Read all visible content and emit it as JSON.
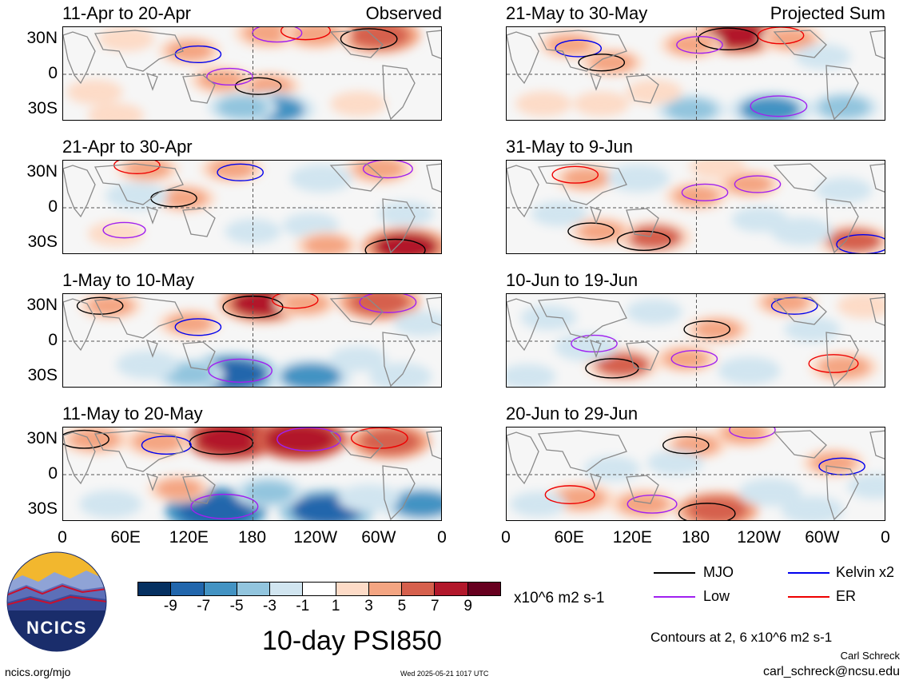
{
  "title": "10-day PSI850",
  "colors": {
    "ncics_navy": "#1a2d6b",
    "ncics_yellow": "#f2b72e",
    "mjo": "#000000",
    "low": "#a020f0",
    "kelvin": "#0000ee",
    "er": "#ee0000"
  },
  "chart_data": {
    "type": "heatmap",
    "variable": "10-day PSI850",
    "xaxis": {
      "ticks": [
        "0",
        "60E",
        "120E",
        "180",
        "120W",
        "60W",
        "0"
      ],
      "values": [
        0,
        60,
        120,
        180,
        240,
        300,
        360
      ]
    },
    "yaxis": {
      "ticks": [
        "30N",
        "0",
        "30S"
      ],
      "values": [
        30,
        0,
        -30
      ],
      "range": [
        -40,
        40
      ]
    },
    "colorbar": {
      "levels": [
        "-9",
        "-7",
        "-5",
        "-3",
        "-1",
        "1",
        "3",
        "5",
        "7",
        "9"
      ],
      "colors": [
        "#053061",
        "#2166ac",
        "#4393c3",
        "#92c5de",
        "#d1e5f0",
        "#ffffff",
        "#fddbc7",
        "#f4a582",
        "#d6604d",
        "#b2182b",
        "#67001f"
      ],
      "units": "x10^6 m2 s-1"
    },
    "legend": {
      "placement": "bottom-right",
      "items": [
        {
          "name": "MJO",
          "color": "#000000"
        },
        {
          "name": "Kelvin x2",
          "color": "#0000ee"
        },
        {
          "name": "Low",
          "color": "#a020f0"
        },
        {
          "name": "ER",
          "color": "#ee0000"
        }
      ]
    },
    "contour_note": "Contours at 2, 6 x10^6 m2 s-1",
    "panels": [
      {
        "period": "11-Apr to 20-Apr",
        "tag": "Observed",
        "features": [
          [
            300,
            33,
            6
          ],
          [
            195,
            35,
            4
          ],
          [
            240,
            34,
            4
          ],
          [
            120,
            20,
            3
          ],
          [
            195,
            -10,
            3
          ],
          [
            150,
            -5,
            3
          ],
          [
            30,
            -15,
            2
          ],
          [
            280,
            -25,
            2
          ],
          [
            200,
            -30,
            -6
          ],
          [
            170,
            -28,
            -4
          ],
          [
            60,
            30,
            2
          ],
          [
            50,
            -35,
            2
          ]
        ]
      },
      {
        "period": "21-Apr to 30-Apr",
        "tag": "",
        "features": [
          [
            325,
            -33,
            7
          ],
          [
            300,
            33,
            4
          ],
          [
            80,
            33,
            3
          ],
          [
            160,
            33,
            3
          ],
          [
            115,
            8,
            3
          ],
          [
            50,
            -22,
            2
          ],
          [
            70,
            10,
            -3
          ],
          [
            245,
            25,
            -3
          ],
          [
            180,
            -20,
            -2
          ],
          [
            235,
            -15,
            -2
          ],
          [
            325,
            -5,
            -2
          ],
          [
            250,
            -32,
            3
          ]
        ]
      },
      {
        "period": "1-May to 10-May",
        "tag": "",
        "features": [
          [
            190,
            32,
            7
          ],
          [
            300,
            33,
            6
          ],
          [
            230,
            32,
            3
          ],
          [
            120,
            15,
            3
          ],
          [
            45,
            30,
            3
          ],
          [
            160,
            -28,
            -8
          ],
          [
            235,
            -30,
            -6
          ],
          [
            120,
            -28,
            -4
          ],
          [
            80,
            -20,
            -3
          ],
          [
            320,
            -30,
            -3
          ],
          [
            280,
            -15,
            -2
          ],
          [
            340,
            15,
            -2
          ]
        ]
      },
      {
        "period": "11-May to 20-May",
        "tag": "",
        "features": [
          [
            160,
            30,
            8
          ],
          [
            225,
            30,
            8
          ],
          [
            310,
            28,
            6
          ],
          [
            90,
            28,
            4
          ],
          [
            30,
            30,
            4
          ],
          [
            145,
            -30,
            -9
          ],
          [
            250,
            -30,
            -8
          ],
          [
            340,
            -25,
            -6
          ],
          [
            45,
            -25,
            -3
          ],
          [
            195,
            -15,
            -4
          ],
          [
            110,
            -12,
            3
          ],
          [
            290,
            -20,
            -3
          ]
        ]
      },
      {
        "period": "21-May to 30-May",
        "tag": "Projected Sum",
        "features": [
          [
            220,
            33,
            7
          ],
          [
            175,
            25,
            3
          ],
          [
            270,
            30,
            3
          ],
          [
            60,
            25,
            3
          ],
          [
            100,
            10,
            3
          ],
          [
            250,
            -30,
            -6
          ],
          [
            175,
            -30,
            -4
          ],
          [
            320,
            -28,
            -4
          ],
          [
            35,
            -25,
            2
          ],
          [
            140,
            -15,
            2
          ],
          [
            90,
            -25,
            2
          ],
          [
            300,
            15,
            -2
          ]
        ]
      },
      {
        "period": "31-May to 9-Jun",
        "tag": "",
        "features": [
          [
            140,
            -25,
            5
          ],
          [
            230,
            20,
            3
          ],
          [
            75,
            25,
            3
          ],
          [
            330,
            -28,
            5
          ],
          [
            90,
            -20,
            3
          ],
          [
            180,
            10,
            3
          ],
          [
            125,
            25,
            -3
          ],
          [
            200,
            35,
            2
          ],
          [
            280,
            -20,
            -3
          ],
          [
            50,
            -5,
            -2
          ],
          [
            240,
            -10,
            -2
          ],
          [
            320,
            15,
            -2
          ]
        ]
      },
      {
        "period": "10-Jun to 19-Jun",
        "tag": "",
        "features": [
          [
            110,
            -20,
            5
          ],
          [
            170,
            -15,
            3
          ],
          [
            320,
            -22,
            4
          ],
          [
            265,
            33,
            3
          ],
          [
            200,
            10,
            3
          ],
          [
            75,
            -5,
            -3
          ],
          [
            230,
            -25,
            -3
          ],
          [
            40,
            20,
            -2
          ],
          [
            290,
            10,
            -2
          ],
          [
            140,
            25,
            -2
          ],
          [
            340,
            30,
            2
          ],
          [
            20,
            -30,
            -2
          ]
        ]
      },
      {
        "period": "20-Jun to 29-Jun",
        "tag": "",
        "features": [
          [
            200,
            -30,
            6
          ],
          [
            130,
            -25,
            4
          ],
          [
            70,
            -20,
            4
          ],
          [
            310,
            10,
            3
          ],
          [
            180,
            25,
            3
          ],
          [
            225,
            35,
            3
          ],
          [
            250,
            -15,
            -3
          ],
          [
            30,
            -25,
            -2
          ],
          [
            290,
            -30,
            -3
          ],
          [
            100,
            5,
            -2
          ],
          [
            350,
            -10,
            -2
          ],
          [
            160,
            10,
            -2
          ]
        ]
      }
    ]
  },
  "footer": {
    "logo_text": "NCICS",
    "site": "ncics.org/mjo",
    "timestamp": "Wed 2025-05-21 1017 UTC",
    "author": "Carl Schreck",
    "email": "carl_schreck@ncsu.edu"
  }
}
